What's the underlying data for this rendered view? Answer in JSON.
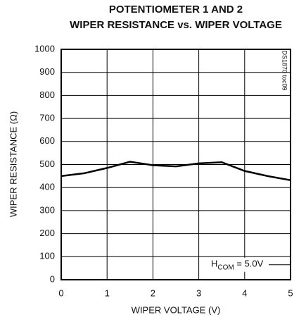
{
  "chart_data": {
    "type": "line",
    "title": [
      "POTENTIOMETER 1 AND 2",
      "WIPER RESISTANCE vs. WIPER VOLTAGE"
    ],
    "xlabel": "WIPER VOLTAGE (V)",
    "ylabel": "WIPER RESISTANCE (Ω)",
    "side_label": "DS1870 toc09",
    "annotation": [
      "H",
      "COM",
      " = 5.0V"
    ],
    "x": [
      0,
      0.5,
      1,
      1.5,
      2,
      2.5,
      3,
      3.5,
      4,
      4.5,
      5
    ],
    "series": [
      {
        "name": null,
        "color": "#000000",
        "values": [
          450,
          462,
          485,
          512,
          497,
          492,
          505,
          510,
          472,
          450,
          432
        ]
      }
    ],
    "xlim": [
      0,
      5
    ],
    "xticks": [
      0,
      1,
      2,
      3,
      4,
      5
    ],
    "ylim": [
      0,
      1000
    ],
    "yticks": [
      0,
      100,
      200,
      300,
      400,
      500,
      600,
      700,
      800,
      900,
      1000
    ],
    "grid": true
  }
}
